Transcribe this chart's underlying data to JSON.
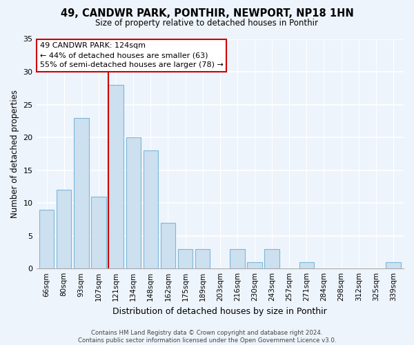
{
  "title": "49, CANDWR PARK, PONTHIR, NEWPORT, NP18 1HN",
  "subtitle": "Size of property relative to detached houses in Ponthir",
  "xlabel": "Distribution of detached houses by size in Ponthir",
  "ylabel": "Number of detached properties",
  "bin_labels": [
    "66sqm",
    "80sqm",
    "93sqm",
    "107sqm",
    "121sqm",
    "134sqm",
    "148sqm",
    "162sqm",
    "175sqm",
    "189sqm",
    "203sqm",
    "216sqm",
    "230sqm",
    "243sqm",
    "257sqm",
    "271sqm",
    "284sqm",
    "298sqm",
    "312sqm",
    "325sqm",
    "339sqm"
  ],
  "bar_heights": [
    9,
    12,
    23,
    11,
    28,
    20,
    18,
    7,
    3,
    3,
    0,
    3,
    1,
    3,
    0,
    1,
    0,
    0,
    0,
    0,
    1
  ],
  "bar_color": "#cce0f0",
  "bar_edge_color": "#7ab8d8",
  "vline_color": "#cc0000",
  "ylim": [
    0,
    35
  ],
  "yticks": [
    0,
    5,
    10,
    15,
    20,
    25,
    30,
    35
  ],
  "annotation_box_text": "49 CANDWR PARK: 124sqm\n← 44% of detached houses are smaller (63)\n55% of semi-detached houses are larger (78) →",
  "annotation_box_color": "#ffffff",
  "annotation_box_edge_color": "#cc0000",
  "footer_text": "Contains HM Land Registry data © Crown copyright and database right 2024.\nContains public sector information licensed under the Open Government Licence v3.0.",
  "background_color": "#eef4fb"
}
